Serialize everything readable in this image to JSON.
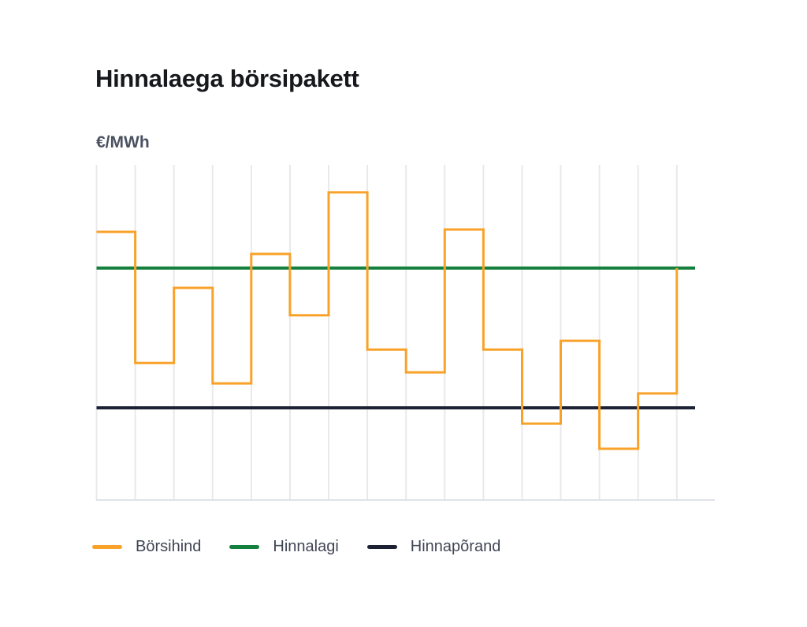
{
  "page": {
    "title": "Hinnalaega börsipakett"
  },
  "axis": {
    "y_unit_label": "€/MWh"
  },
  "legend": {
    "items": [
      {
        "id": "borsihind",
        "label": "Börsihind",
        "color": "#f9a229"
      },
      {
        "id": "hinnalagi",
        "label": "Hinnalagi",
        "color": "#15803d"
      },
      {
        "id": "hinnaporand",
        "label": "Hinnapõrand",
        "color": "#1c2233"
      }
    ]
  },
  "chart_data": {
    "type": "line",
    "line_style": "step",
    "title": "Hinnalaega börsipakett",
    "ylabel": "€/MWh",
    "xlabel": "",
    "x": [
      1,
      2,
      3,
      4,
      5,
      6,
      7,
      8,
      9,
      10,
      11,
      12,
      13,
      14,
      15
    ],
    "x_tick_labels_visible": false,
    "y_tick_labels_visible": false,
    "y_scale_note": "axis unlabeled in image; values estimated as percent of plot height",
    "ylim": [
      0,
      100
    ],
    "series": [
      {
        "name": "Börsihind",
        "type": "step",
        "color": "#f9a229",
        "values": [
          80.0,
          40.9,
          63.3,
          34.8,
          73.4,
          55.1,
          91.8,
          44.9,
          38.1,
          80.7,
          44.9,
          22.8,
          47.5,
          15.3,
          31.8
        ],
        "end_value": 69.2
      },
      {
        "name": "Hinnalagi",
        "type": "hline",
        "color": "#15803d",
        "value": 69.2
      },
      {
        "name": "Hinnapõrand",
        "type": "hline",
        "color": "#1c2233",
        "value": 27.5
      }
    ],
    "grid": {
      "vertical": true,
      "horizontal": false,
      "color": "#e9e9ec",
      "baseline_color": "#dfe2e7"
    },
    "legend_position": "bottom"
  }
}
